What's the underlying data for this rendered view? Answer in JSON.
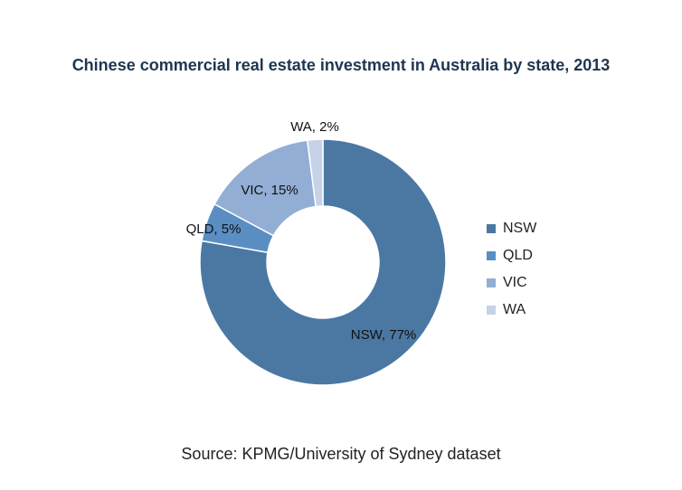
{
  "chart_data": {
    "type": "pie",
    "title": "Chinese commercial real estate investment in Australia by state, 2013",
    "categories": [
      "NSW",
      "QLD",
      "VIC",
      "WA"
    ],
    "values": [
      77,
      5,
      15,
      2
    ],
    "data_labels": [
      "NSW, 77%",
      "QLD, 5%",
      "VIC, 15%",
      "WA, 2%"
    ],
    "colors": [
      "#4b78a3",
      "#5a8ec3",
      "#93aed4",
      "#c5d2e7"
    ],
    "legend_position": "right",
    "donut": true
  },
  "source": "Source: KPMG/University of Sydney dataset"
}
